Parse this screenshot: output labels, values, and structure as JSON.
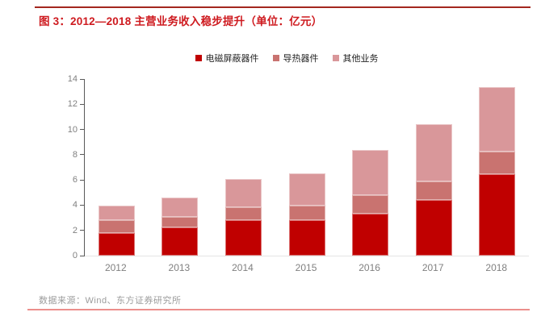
{
  "header": {
    "title": "图 3：2012—2018 主营业务收入稳步提升（单位：亿元）"
  },
  "footer": {
    "source_label": "数据来源：Wind、东方证券研究所"
  },
  "colors": {
    "title_red": "#CE1A1F",
    "top_rule": "#A3271F",
    "bottom_rule": "#EC8F8C",
    "footer_gray": "#9C9C9C",
    "axis_line": "#595959",
    "baseline": "#E4E4E4",
    "tick_label": "#808080"
  },
  "chart_data": {
    "type": "bar",
    "stacked": true,
    "title": "图 3：2012—2018 主营业务收入稳步提升（单位：亿元）",
    "categories": [
      "2012",
      "2013",
      "2014",
      "2015",
      "2016",
      "2017",
      "2018"
    ],
    "series": [
      {
        "name": "电磁屏蔽器件",
        "color": "#C00000",
        "values": [
          1.8,
          2.25,
          2.8,
          2.8,
          3.3,
          4.4,
          6.45
        ]
      },
      {
        "name": "导热器件",
        "color": "#C97370",
        "values": [
          1.0,
          0.8,
          1.05,
          1.15,
          1.5,
          1.5,
          1.8
        ]
      },
      {
        "name": "其他业务",
        "color": "#D9979A",
        "values": [
          1.15,
          1.55,
          2.2,
          2.55,
          3.6,
          4.5,
          5.1
        ]
      }
    ],
    "totals": [
      3.95,
      4.6,
      6.05,
      6.5,
      8.4,
      10.4,
      13.35
    ],
    "xlabel": "",
    "ylabel": "",
    "ylim": [
      0,
      14
    ],
    "y_ticks": [
      0,
      2,
      4,
      6,
      8,
      10,
      12,
      14
    ],
    "legend_position": "top",
    "grid": false
  }
}
